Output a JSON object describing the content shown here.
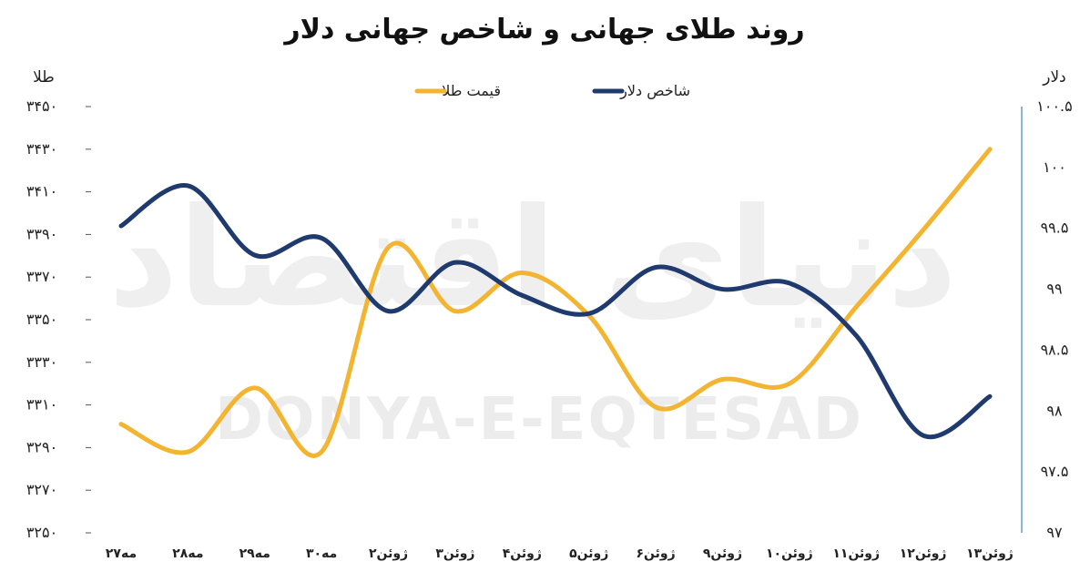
{
  "watermark": {
    "latin": "DONYA-E-EQTESAD",
    "persian": "دنیای اقتصاد"
  },
  "chart_data": {
    "type": "line",
    "title": "روند طلای جهانی و شاخص جهانی دلار",
    "left_axis_label": "طلا",
    "right_axis_label": "دلار",
    "categories": [
      "۲۷مه",
      "۲۸مه",
      "۲۹مه",
      "۳۰مه",
      "۲ژوئن",
      "۳ژوئن",
      "۴ژوئن",
      "۵ژوئن",
      "۶ژوئن",
      "۹ژوئن",
      "۱۰ژوئن",
      "۱۱ژوئن",
      "۱۲ژوئن",
      "۱۳ژوئن"
    ],
    "left_axis": {
      "range": [
        3250,
        3450
      ],
      "ticks": [
        3250,
        3270,
        3290,
        3310,
        3330,
        3350,
        3370,
        3390,
        3410,
        3430,
        3450
      ],
      "tick_labels": [
        "۳۲۵۰",
        "۳۲۷۰",
        "۳۲۹۰",
        "۳۳۱۰",
        "۳۳۳۰",
        "۳۳۵۰",
        "۳۳۷۰",
        "۳۳۹۰",
        "۳۴۱۰",
        "۳۴۳۰",
        "۳۴۵۰"
      ]
    },
    "right_axis": {
      "range": [
        97,
        100.5
      ],
      "ticks": [
        97,
        97.5,
        98,
        98.5,
        99,
        99.5,
        100,
        100.5
      ],
      "tick_labels": [
        "۹۷",
        "۹۷.۵",
        "۹۸",
        "۹۸.۵",
        "۹۹",
        "۹۹.۵",
        "۱۰۰",
        "۱۰۰.۵"
      ]
    },
    "series": [
      {
        "name": "قیمت طلا",
        "axis": "left",
        "color": "#F2B431",
        "values": [
          3301,
          3288,
          3318,
          3288,
          3384,
          3354,
          3372,
          3352,
          3309,
          3322,
          3320,
          3356,
          3392,
          3430
        ]
      },
      {
        "name": "شاخص دلار",
        "axis": "right",
        "color": "#1F3A6E",
        "values": [
          99.52,
          99.85,
          99.28,
          99.42,
          98.82,
          99.22,
          98.95,
          98.8,
          99.18,
          99.0,
          99.05,
          98.62,
          97.8,
          98.12
        ]
      }
    ],
    "legend_position": "top-center",
    "grid": false
  }
}
